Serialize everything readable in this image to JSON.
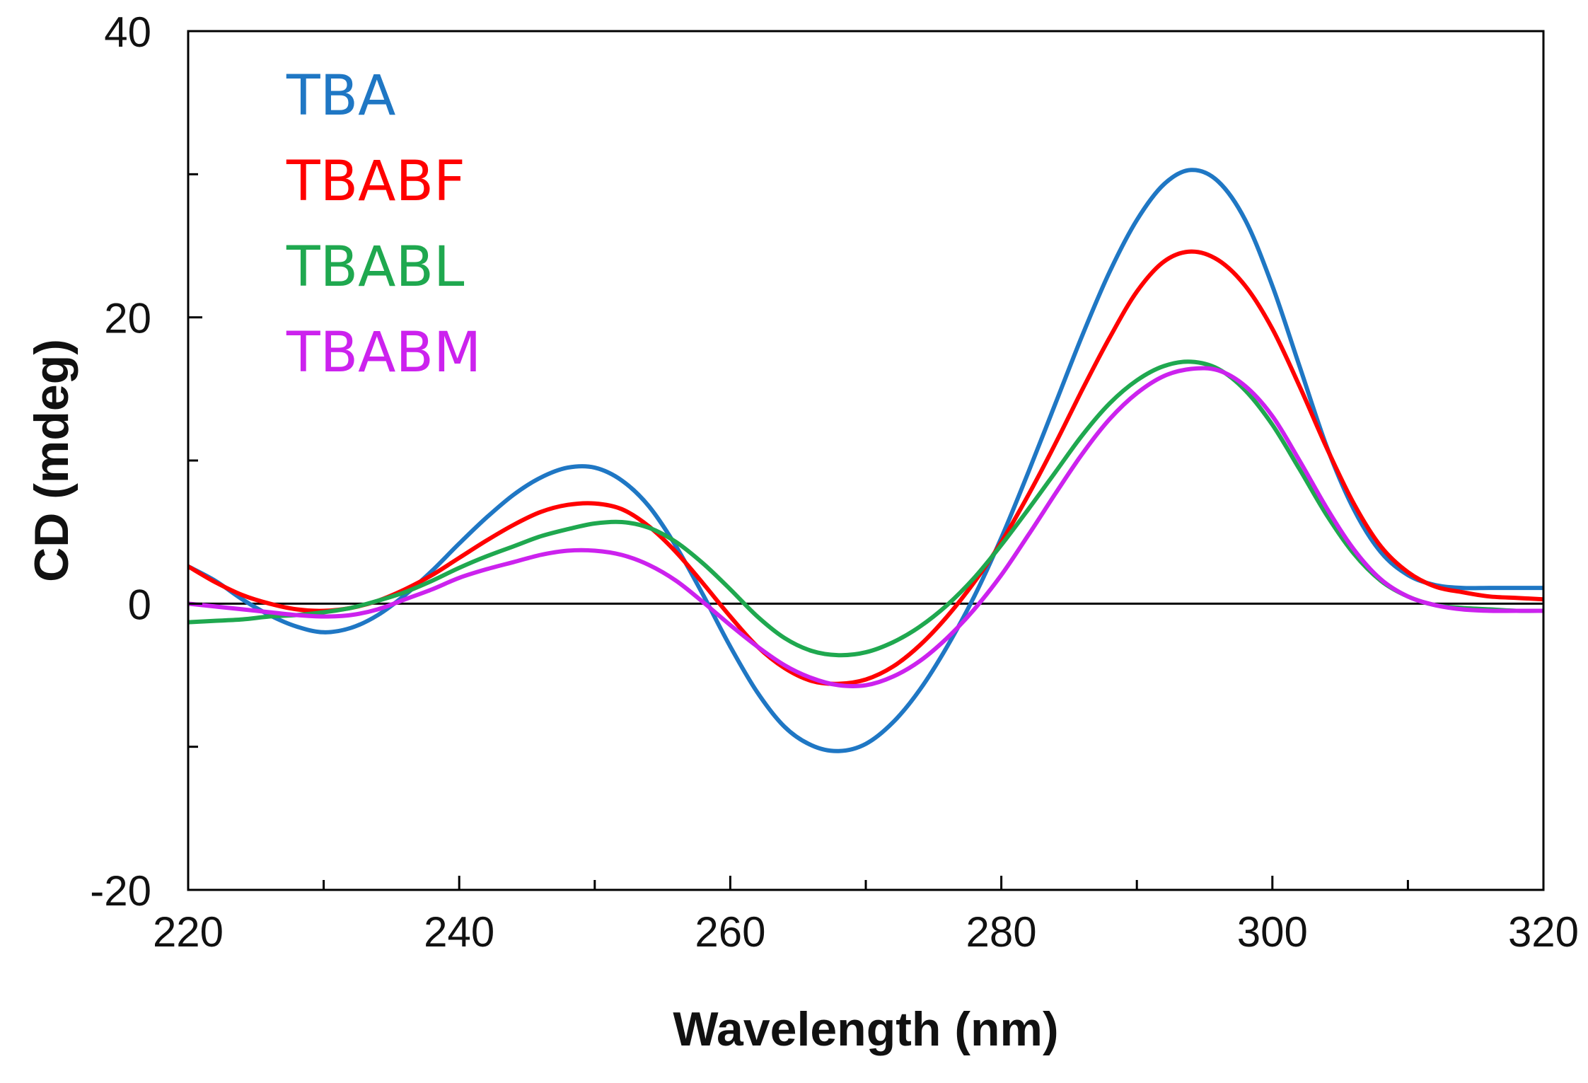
{
  "chart_data": {
    "type": "line",
    "title": "",
    "xlabel": "Wavelength (nm)",
    "ylabel": "CD (mdeg)",
    "xlim": [
      220,
      320
    ],
    "ylim": [
      -20,
      40
    ],
    "x_major_ticks": [
      220,
      240,
      260,
      280,
      300,
      320
    ],
    "x_minor_ticks": [
      230,
      250,
      270,
      290,
      310
    ],
    "y_major_ticks": [
      -20,
      0,
      20,
      40
    ],
    "y_minor_ticks": [
      -10,
      10,
      30
    ],
    "zero_line": true,
    "grid": false,
    "legend_position": "top-left",
    "series": [
      {
        "name": "TBA",
        "color": "#1f77c4",
        "points": [
          [
            220,
            2.6
          ],
          [
            222,
            1.6
          ],
          [
            224,
            0.3
          ],
          [
            226,
            -0.8
          ],
          [
            228,
            -1.6
          ],
          [
            230,
            -2.0
          ],
          [
            232,
            -1.7
          ],
          [
            234,
            -0.8
          ],
          [
            236,
            0.6
          ],
          [
            238,
            2.3
          ],
          [
            240,
            4.2
          ],
          [
            242,
            6.0
          ],
          [
            244,
            7.6
          ],
          [
            246,
            8.8
          ],
          [
            248,
            9.5
          ],
          [
            250,
            9.5
          ],
          [
            252,
            8.6
          ],
          [
            254,
            6.8
          ],
          [
            256,
            4.0
          ],
          [
            258,
            0.6
          ],
          [
            260,
            -3.0
          ],
          [
            262,
            -6.2
          ],
          [
            264,
            -8.6
          ],
          [
            266,
            -9.9
          ],
          [
            268,
            -10.3
          ],
          [
            270,
            -9.8
          ],
          [
            272,
            -8.3
          ],
          [
            274,
            -6.0
          ],
          [
            276,
            -3.0
          ],
          [
            278,
            0.5
          ],
          [
            280,
            4.6
          ],
          [
            282,
            9.2
          ],
          [
            284,
            14.0
          ],
          [
            286,
            18.8
          ],
          [
            288,
            23.2
          ],
          [
            290,
            26.8
          ],
          [
            292,
            29.3
          ],
          [
            294,
            30.3
          ],
          [
            296,
            29.5
          ],
          [
            298,
            26.8
          ],
          [
            300,
            22.2
          ],
          [
            302,
            16.6
          ],
          [
            304,
            11.0
          ],
          [
            306,
            6.6
          ],
          [
            308,
            3.6
          ],
          [
            310,
            2.0
          ],
          [
            312,
            1.3
          ],
          [
            314,
            1.1
          ],
          [
            316,
            1.1
          ],
          [
            318,
            1.1
          ],
          [
            320,
            1.1
          ]
        ]
      },
      {
        "name": "TBABF",
        "color": "#ff0000",
        "points": [
          [
            220,
            2.6
          ],
          [
            222,
            1.5
          ],
          [
            224,
            0.6
          ],
          [
            226,
            0.0
          ],
          [
            228,
            -0.4
          ],
          [
            230,
            -0.5
          ],
          [
            232,
            -0.3
          ],
          [
            234,
            0.2
          ],
          [
            236,
            1.0
          ],
          [
            238,
            2.0
          ],
          [
            240,
            3.2
          ],
          [
            242,
            4.4
          ],
          [
            244,
            5.5
          ],
          [
            246,
            6.4
          ],
          [
            248,
            6.9
          ],
          [
            250,
            7.0
          ],
          [
            252,
            6.6
          ],
          [
            254,
            5.4
          ],
          [
            256,
            3.6
          ],
          [
            258,
            1.4
          ],
          [
            260,
            -0.9
          ],
          [
            262,
            -3.0
          ],
          [
            264,
            -4.5
          ],
          [
            266,
            -5.4
          ],
          [
            268,
            -5.6
          ],
          [
            270,
            -5.3
          ],
          [
            272,
            -4.4
          ],
          [
            274,
            -2.9
          ],
          [
            276,
            -0.9
          ],
          [
            278,
            1.5
          ],
          [
            280,
            4.3
          ],
          [
            282,
            7.6
          ],
          [
            284,
            11.2
          ],
          [
            286,
            15.0
          ],
          [
            288,
            18.6
          ],
          [
            290,
            21.8
          ],
          [
            292,
            23.9
          ],
          [
            294,
            24.6
          ],
          [
            296,
            24.0
          ],
          [
            298,
            22.2
          ],
          [
            300,
            19.2
          ],
          [
            302,
            15.2
          ],
          [
            304,
            10.9
          ],
          [
            306,
            7.0
          ],
          [
            308,
            4.0
          ],
          [
            310,
            2.2
          ],
          [
            312,
            1.2
          ],
          [
            314,
            0.8
          ],
          [
            316,
            0.5
          ],
          [
            318,
            0.4
          ],
          [
            320,
            0.3
          ]
        ]
      },
      {
        "name": "TBABL",
        "color": "#1fa84f",
        "points": [
          [
            220,
            -1.3
          ],
          [
            222,
            -1.2
          ],
          [
            224,
            -1.1
          ],
          [
            226,
            -0.9
          ],
          [
            228,
            -0.8
          ],
          [
            230,
            -0.6
          ],
          [
            232,
            -0.3
          ],
          [
            234,
            0.2
          ],
          [
            236,
            0.8
          ],
          [
            238,
            1.6
          ],
          [
            240,
            2.5
          ],
          [
            242,
            3.3
          ],
          [
            244,
            4.0
          ],
          [
            246,
            4.7
          ],
          [
            248,
            5.2
          ],
          [
            250,
            5.6
          ],
          [
            252,
            5.7
          ],
          [
            254,
            5.3
          ],
          [
            256,
            4.3
          ],
          [
            258,
            2.8
          ],
          [
            260,
            1.0
          ],
          [
            262,
            -0.9
          ],
          [
            264,
            -2.4
          ],
          [
            266,
            -3.3
          ],
          [
            268,
            -3.6
          ],
          [
            270,
            -3.4
          ],
          [
            272,
            -2.7
          ],
          [
            274,
            -1.6
          ],
          [
            276,
            -0.1
          ],
          [
            278,
            1.8
          ],
          [
            280,
            4.1
          ],
          [
            282,
            6.6
          ],
          [
            284,
            9.2
          ],
          [
            286,
            11.8
          ],
          [
            288,
            14.0
          ],
          [
            290,
            15.6
          ],
          [
            292,
            16.6
          ],
          [
            294,
            16.9
          ],
          [
            296,
            16.4
          ],
          [
            298,
            14.9
          ],
          [
            300,
            12.5
          ],
          [
            302,
            9.4
          ],
          [
            304,
            6.2
          ],
          [
            306,
            3.5
          ],
          [
            308,
            1.6
          ],
          [
            310,
            0.5
          ],
          [
            312,
            -0.1
          ],
          [
            314,
            -0.3
          ],
          [
            316,
            -0.4
          ],
          [
            318,
            -0.5
          ],
          [
            320,
            -0.5
          ]
        ]
      },
      {
        "name": "TBABM",
        "color": "#cc22ee",
        "points": [
          [
            220,
            0.0
          ],
          [
            222,
            -0.2
          ],
          [
            224,
            -0.4
          ],
          [
            226,
            -0.6
          ],
          [
            228,
            -0.8
          ],
          [
            230,
            -0.9
          ],
          [
            232,
            -0.8
          ],
          [
            234,
            -0.4
          ],
          [
            236,
            0.3
          ],
          [
            238,
            1.0
          ],
          [
            240,
            1.8
          ],
          [
            242,
            2.4
          ],
          [
            244,
            2.9
          ],
          [
            246,
            3.4
          ],
          [
            248,
            3.7
          ],
          [
            250,
            3.7
          ],
          [
            252,
            3.4
          ],
          [
            254,
            2.7
          ],
          [
            256,
            1.6
          ],
          [
            258,
            0.1
          ],
          [
            260,
            -1.5
          ],
          [
            262,
            -3.0
          ],
          [
            264,
            -4.3
          ],
          [
            266,
            -5.2
          ],
          [
            268,
            -5.7
          ],
          [
            270,
            -5.7
          ],
          [
            272,
            -5.1
          ],
          [
            274,
            -4.0
          ],
          [
            276,
            -2.4
          ],
          [
            278,
            -0.4
          ],
          [
            280,
            2.0
          ],
          [
            282,
            4.8
          ],
          [
            284,
            7.7
          ],
          [
            286,
            10.5
          ],
          [
            288,
            12.9
          ],
          [
            290,
            14.7
          ],
          [
            292,
            15.9
          ],
          [
            294,
            16.4
          ],
          [
            296,
            16.3
          ],
          [
            298,
            15.2
          ],
          [
            300,
            13.1
          ],
          [
            302,
            10.0
          ],
          [
            304,
            6.7
          ],
          [
            306,
            3.8
          ],
          [
            308,
            1.7
          ],
          [
            310,
            0.5
          ],
          [
            312,
            -0.1
          ],
          [
            314,
            -0.4
          ],
          [
            316,
            -0.5
          ],
          [
            318,
            -0.5
          ],
          [
            320,
            -0.5
          ]
        ]
      }
    ]
  }
}
